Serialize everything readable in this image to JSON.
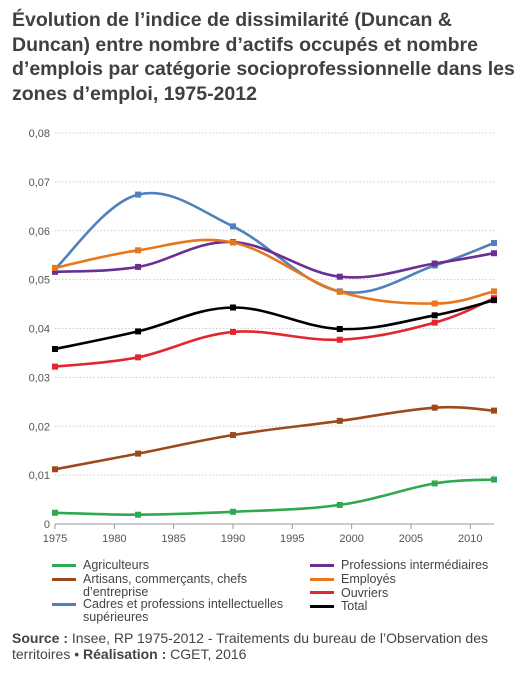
{
  "chart_data": {
    "type": "line",
    "title": "Évolution de l’indice de dissimilarité (Duncan & Duncan) entre nombre d’actifs occupés et nombre d’emplois par catégorie socioprofessionnelle dans les zones d’emploi, 1975-2012",
    "xlabel": "",
    "ylabel": "",
    "xlim": [
      1975,
      2012
    ],
    "ylim": [
      0,
      0.08
    ],
    "x_ticks": [
      1975,
      1980,
      1985,
      1990,
      1995,
      2000,
      2005,
      2010
    ],
    "x_tick_labels": [
      "1975",
      "1980",
      "1985",
      "1990",
      "1995",
      "2000",
      "2005",
      "2010"
    ],
    "y_ticks": [
      0,
      0.01,
      0.02,
      0.03,
      0.04,
      0.05,
      0.06,
      0.07,
      0.08
    ],
    "y_tick_labels": [
      "0",
      "0,01",
      "0,02",
      "0,03",
      "0,04",
      "0,05",
      "0,06",
      "0,07",
      "0,08"
    ],
    "x": [
      1975,
      1982,
      1990,
      1999,
      2007,
      2012
    ],
    "grid": "horizontal",
    "legend": "bottom",
    "series": [
      {
        "name": "Agriculteurs",
        "color": "#2fa84f",
        "values": [
          0.0023,
          0.0019,
          0.0025,
          0.0039,
          0.0083,
          0.0091
        ]
      },
      {
        "name": "Artisans, commerçants, chefs\nd’entreprise",
        "color": "#9c4a1a",
        "values": [
          0.0112,
          0.0144,
          0.0182,
          0.0211,
          0.0238,
          0.0232
        ]
      },
      {
        "name": "Cadres et professions intellectuelles\nsupérieures",
        "color": "#4f81bd",
        "values": [
          0.0522,
          0.0674,
          0.0609,
          0.0476,
          0.0529,
          0.0575
        ]
      },
      {
        "name": "Professions intermédiaires",
        "color": "#6a2f91",
        "values": [
          0.0516,
          0.0526,
          0.0577,
          0.0506,
          0.0533,
          0.0554
        ]
      },
      {
        "name": "Employés",
        "color": "#e8761c",
        "values": [
          0.0524,
          0.056,
          0.0576,
          0.0475,
          0.0451,
          0.0476
        ]
      },
      {
        "name": "Ouvriers",
        "color": "#e3262d",
        "values": [
          0.0322,
          0.0341,
          0.0393,
          0.0377,
          0.0412,
          0.0462
        ]
      },
      {
        "name": "Total",
        "color": "#000000",
        "values": [
          0.0358,
          0.0394,
          0.0443,
          0.0399,
          0.0427,
          0.0458
        ]
      }
    ]
  },
  "source": {
    "label": "Source :",
    "text": " Insee, RP 1975-2012 - Traitements du bureau de l’Observation des territoires • ",
    "realisation_label": "Réalisation :",
    "realisation_text": " CGET, 2016"
  }
}
